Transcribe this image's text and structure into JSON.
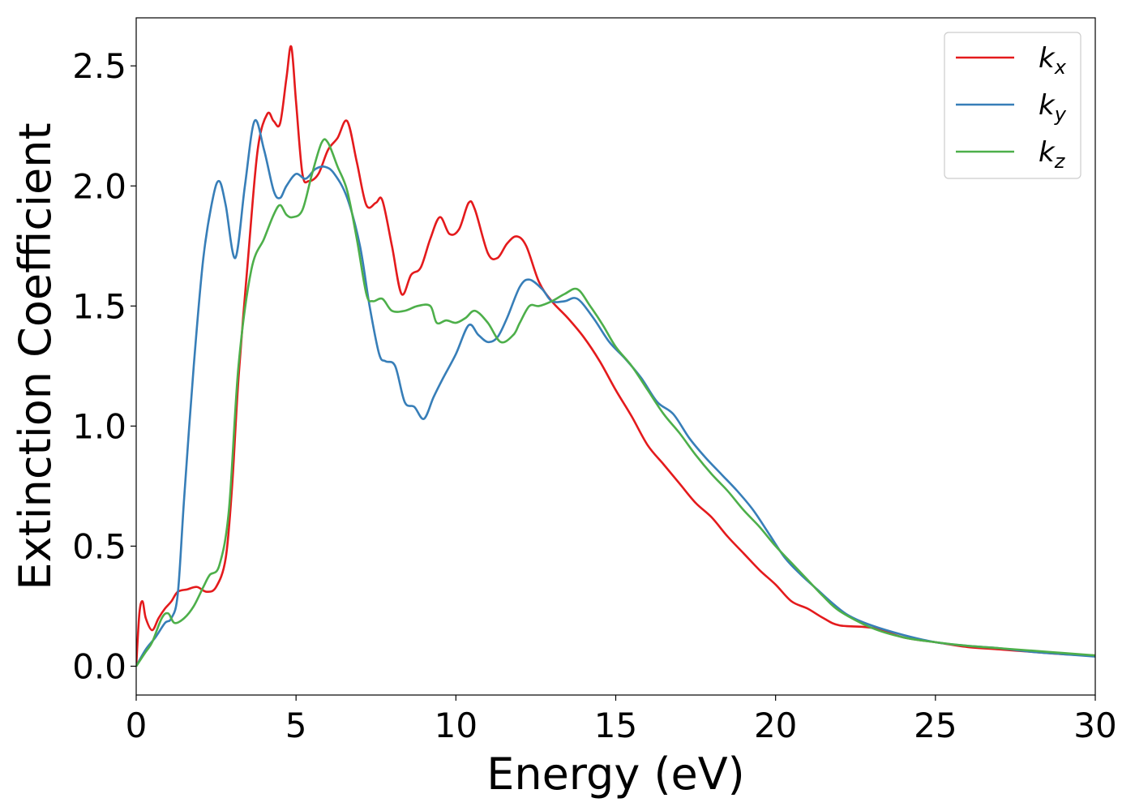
{
  "chart_data": {
    "type": "line",
    "title": "",
    "xlabel": "Energy (eV)",
    "ylabel": "Extinction Coefficient",
    "xlim": [
      0,
      30
    ],
    "ylim": [
      -0.12,
      2.7
    ],
    "xticks": [
      0,
      5,
      10,
      15,
      20,
      25,
      30
    ],
    "xtick_labels": [
      "0",
      "5",
      "10",
      "15",
      "20",
      "25",
      "30"
    ],
    "yticks": [
      0.0,
      0.5,
      1.0,
      1.5,
      2.0,
      2.5
    ],
    "ytick_labels": [
      "0.0",
      "0.5",
      "1.0",
      "1.5",
      "2.0",
      "2.5"
    ],
    "grid": false,
    "legend_position": "top-right",
    "series": [
      {
        "name": "k_x",
        "label_main": "k",
        "label_sub": "x",
        "color": "#e41a1c",
        "x": [
          0,
          0.1,
          0.2,
          0.3,
          0.5,
          0.7,
          0.9,
          1.1,
          1.3,
          1.6,
          1.9,
          2.2,
          2.5,
          2.8,
          3.0,
          3.2,
          3.5,
          3.8,
          4.1,
          4.3,
          4.5,
          4.7,
          4.85,
          5.0,
          5.2,
          5.4,
          5.7,
          6.0,
          6.3,
          6.6,
          6.9,
          7.2,
          7.5,
          7.7,
          8.0,
          8.3,
          8.6,
          8.9,
          9.2,
          9.5,
          9.8,
          10.1,
          10.4,
          10.6,
          11.0,
          11.3,
          11.6,
          11.9,
          12.2,
          12.6,
          13.0,
          13.5,
          14.0,
          14.5,
          15.0,
          15.5,
          16.0,
          16.5,
          17.0,
          17.5,
          18.0,
          18.5,
          19.0,
          19.5,
          20.0,
          20.5,
          21.0,
          21.5,
          22.0,
          23.0,
          24.0,
          25.0,
          26.0,
          27.0,
          28.0,
          29.0,
          30.0
        ],
        "y": [
          0.0,
          0.22,
          0.27,
          0.2,
          0.15,
          0.2,
          0.24,
          0.27,
          0.31,
          0.32,
          0.33,
          0.31,
          0.33,
          0.45,
          0.75,
          1.2,
          1.7,
          2.15,
          2.3,
          2.27,
          2.26,
          2.45,
          2.58,
          2.35,
          2.05,
          2.02,
          2.05,
          2.15,
          2.2,
          2.27,
          2.1,
          1.92,
          1.93,
          1.94,
          1.75,
          1.55,
          1.63,
          1.66,
          1.78,
          1.87,
          1.8,
          1.82,
          1.93,
          1.9,
          1.72,
          1.7,
          1.76,
          1.79,
          1.75,
          1.6,
          1.52,
          1.45,
          1.37,
          1.27,
          1.15,
          1.04,
          0.92,
          0.84,
          0.76,
          0.68,
          0.62,
          0.54,
          0.47,
          0.4,
          0.34,
          0.27,
          0.24,
          0.2,
          0.17,
          0.16,
          0.12,
          0.1,
          0.08,
          0.07,
          0.06,
          0.05,
          0.045
        ]
      },
      {
        "name": "k_y",
        "label_main": "k",
        "label_sub": "y",
        "color": "#377eb8",
        "x": [
          0,
          0.3,
          0.6,
          0.9,
          1.1,
          1.3,
          1.5,
          1.8,
          2.1,
          2.4,
          2.6,
          2.8,
          3.1,
          3.4,
          3.7,
          4.0,
          4.3,
          4.5,
          4.7,
          5.0,
          5.3,
          5.6,
          5.9,
          6.2,
          6.6,
          7.0,
          7.3,
          7.6,
          7.8,
          8.1,
          8.4,
          8.7,
          9.0,
          9.3,
          9.6,
          10.0,
          10.4,
          10.7,
          11.0,
          11.3,
          11.6,
          12.0,
          12.3,
          12.7,
          13.0,
          13.4,
          13.8,
          14.3,
          14.8,
          15.3,
          15.8,
          16.3,
          16.8,
          17.3,
          17.8,
          18.3,
          18.8,
          19.3,
          19.8,
          20.3,
          20.8,
          21.3,
          21.8,
          22.3,
          23.0,
          24.0,
          25.0,
          26.0,
          27.0,
          28.0,
          29.0,
          30.0
        ],
        "y": [
          0.0,
          0.07,
          0.12,
          0.18,
          0.2,
          0.3,
          0.7,
          1.25,
          1.7,
          1.95,
          2.02,
          1.92,
          1.7,
          2.0,
          2.27,
          2.15,
          1.98,
          1.95,
          2.0,
          2.05,
          2.03,
          2.07,
          2.08,
          2.05,
          1.95,
          1.75,
          1.5,
          1.3,
          1.27,
          1.25,
          1.1,
          1.08,
          1.03,
          1.12,
          1.2,
          1.3,
          1.42,
          1.38,
          1.35,
          1.37,
          1.45,
          1.58,
          1.61,
          1.57,
          1.52,
          1.52,
          1.53,
          1.45,
          1.35,
          1.28,
          1.2,
          1.1,
          1.05,
          0.95,
          0.87,
          0.8,
          0.73,
          0.65,
          0.55,
          0.45,
          0.38,
          0.32,
          0.26,
          0.21,
          0.17,
          0.13,
          0.1,
          0.085,
          0.075,
          0.06,
          0.05,
          0.04
        ]
      },
      {
        "name": "k_z",
        "label_main": "k",
        "label_sub": "z",
        "color": "#4daf4a",
        "x": [
          0,
          0.3,
          0.5,
          0.8,
          1.0,
          1.2,
          1.5,
          1.8,
          2.1,
          2.3,
          2.6,
          2.9,
          3.2,
          3.6,
          4.0,
          4.3,
          4.5,
          4.7,
          4.9,
          5.2,
          5.5,
          5.8,
          6.0,
          6.3,
          6.6,
          6.9,
          7.2,
          7.4,
          7.7,
          8.0,
          8.4,
          8.8,
          9.2,
          9.4,
          9.7,
          10.0,
          10.3,
          10.6,
          11.0,
          11.4,
          11.8,
          12.0,
          12.3,
          12.6,
          13.0,
          13.4,
          13.8,
          14.2,
          14.6,
          15.0,
          15.5,
          16.0,
          16.5,
          17.0,
          17.5,
          18.0,
          18.5,
          19.0,
          19.5,
          20.0,
          20.5,
          21.0,
          21.5,
          22.0,
          23.0,
          24.0,
          25.0,
          26.0,
          27.0,
          28.0,
          29.0,
          30.0
        ],
        "y": [
          0.0,
          0.06,
          0.1,
          0.2,
          0.22,
          0.18,
          0.2,
          0.25,
          0.33,
          0.38,
          0.42,
          0.65,
          1.25,
          1.65,
          1.78,
          1.88,
          1.92,
          1.88,
          1.87,
          1.9,
          2.05,
          2.18,
          2.18,
          2.08,
          1.98,
          1.78,
          1.55,
          1.52,
          1.53,
          1.48,
          1.48,
          1.5,
          1.5,
          1.43,
          1.44,
          1.43,
          1.45,
          1.48,
          1.43,
          1.35,
          1.38,
          1.43,
          1.5,
          1.5,
          1.52,
          1.55,
          1.57,
          1.5,
          1.42,
          1.33,
          1.25,
          1.15,
          1.05,
          0.97,
          0.88,
          0.8,
          0.73,
          0.65,
          0.58,
          0.5,
          0.43,
          0.36,
          0.29,
          0.23,
          0.16,
          0.12,
          0.1,
          0.085,
          0.075,
          0.065,
          0.055,
          0.045
        ]
      }
    ]
  }
}
